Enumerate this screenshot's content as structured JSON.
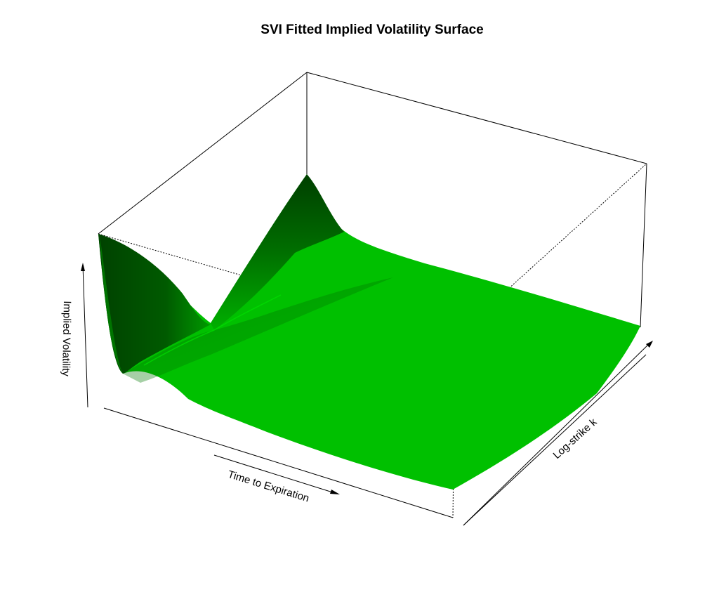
{
  "chart_data": {
    "type": "surface",
    "title": "SVI Fitted Implied Volatility Surface",
    "xlabel": "Time to Expiration",
    "ylabel": "Log-strike k",
    "zlabel": "Implied Volatility",
    "surface_color": "#00c000",
    "shadow_color": "#004400",
    "box": "on",
    "ticks": "none",
    "grid": "off"
  }
}
